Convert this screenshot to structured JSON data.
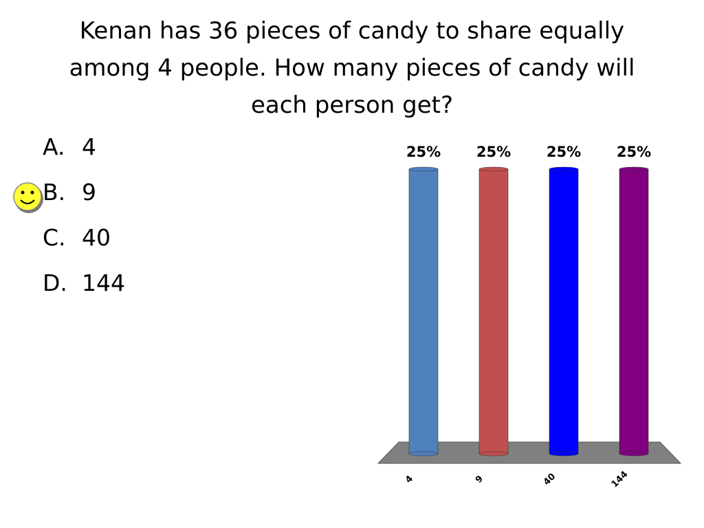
{
  "question": {
    "lines": [
      "Kenan has 36 pieces of candy to share equally",
      "among 4 people. How many pieces of candy will",
      "each person get?"
    ]
  },
  "choices": [
    {
      "letter": "A.",
      "text": "4"
    },
    {
      "letter": "B.",
      "text": "9"
    },
    {
      "letter": "C.",
      "text": "40"
    },
    {
      "letter": "D.",
      "text": "144"
    }
  ],
  "chart_data": {
    "type": "bar",
    "categories": [
      "4",
      "9",
      "40",
      "144"
    ],
    "values": [
      25,
      25,
      25,
      25
    ],
    "value_labels": [
      "25%",
      "25%",
      "25%",
      "25%"
    ],
    "colors": [
      "#4f81bd",
      "#c0504d",
      "#0000ff",
      "#800080"
    ]
  }
}
